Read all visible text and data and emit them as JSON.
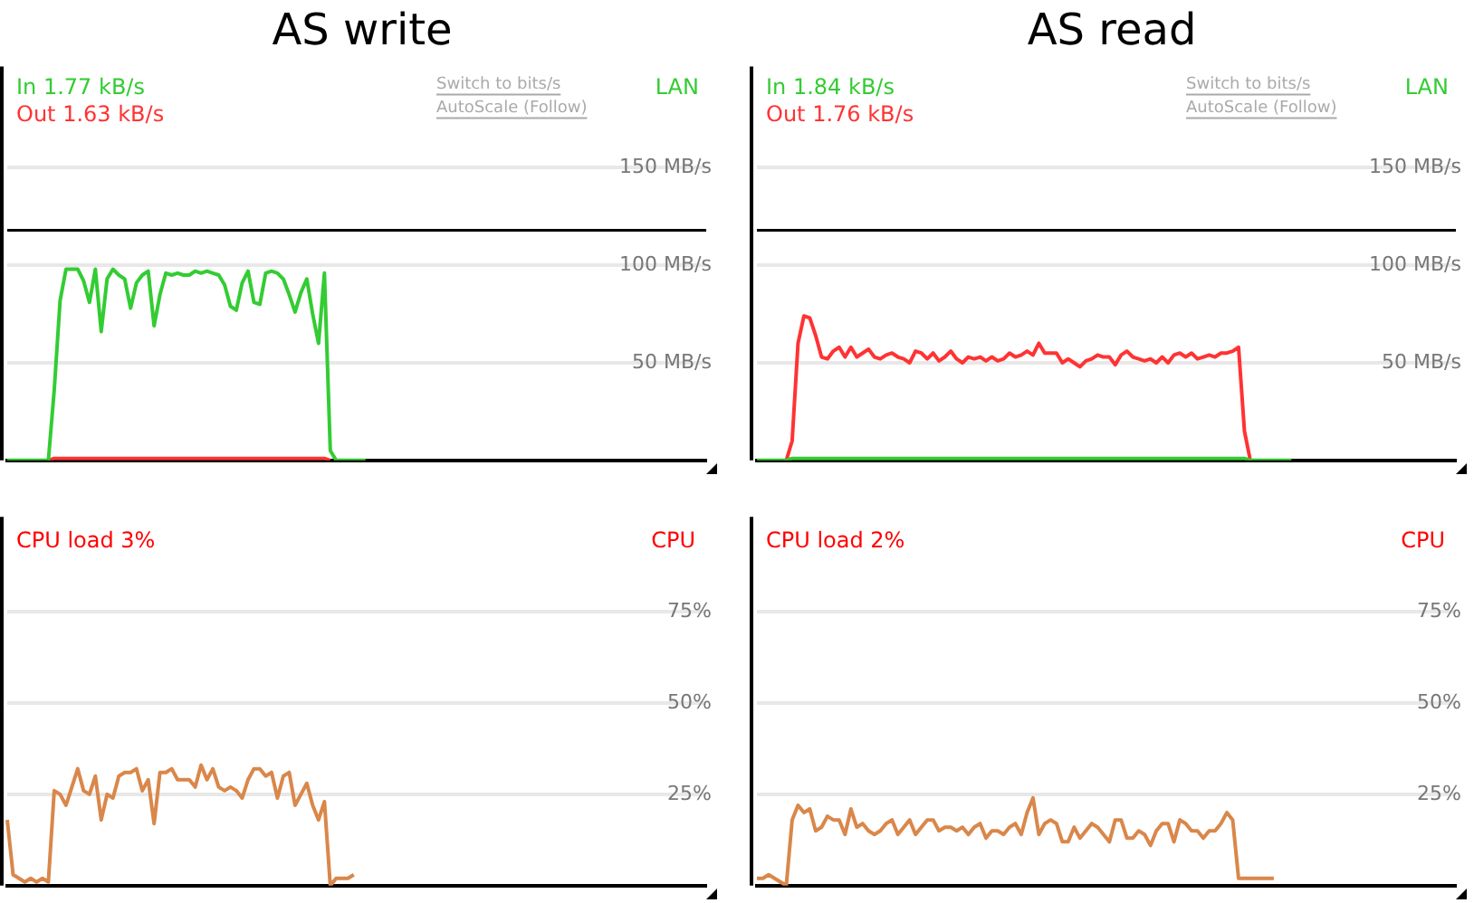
{
  "chart_data": [
    {
      "type": "line",
      "title": "AS write",
      "categories": [
        null,
        null,
        null,
        null,
        null,
        null,
        null,
        null,
        null,
        null,
        null,
        null,
        null,
        null,
        null,
        null,
        null,
        null,
        null,
        null,
        null,
        null,
        null,
        null,
        null,
        null,
        null,
        null,
        null,
        null,
        null,
        null,
        null,
        null,
        null,
        null,
        null,
        null,
        null,
        null,
        null,
        null,
        null,
        null,
        null,
        null,
        null,
        null,
        null,
        null,
        null,
        null,
        null,
        null,
        null,
        null,
        null,
        null,
        null,
        null,
        null,
        null,
        null,
        null,
        null,
        null,
        null,
        null,
        null,
        null,
        null,
        null,
        null,
        null,
        null,
        null,
        null,
        null,
        null,
        null,
        null,
        null,
        null,
        null,
        null,
        null,
        null,
        null,
        null,
        null,
        null,
        null,
        null,
        null,
        null,
        null,
        null,
        null,
        null,
        null,
        null,
        null,
        null,
        null,
        null,
        null,
        null,
        null,
        null,
        null,
        null,
        null,
        null,
        null,
        null,
        null,
        null,
        null,
        null,
        null
      ],
      "series": [
        {
          "color": "#33cc33",
          "values": [
            0,
            0,
            0,
            0,
            0,
            0,
            0,
            0,
            36,
            82,
            98,
            98,
            98,
            92,
            81,
            98,
            66,
            93,
            98,
            95,
            93,
            78,
            91,
            95,
            97,
            69,
            85,
            96,
            95,
            96,
            95,
            95,
            97,
            96,
            97,
            96,
            95,
            90,
            79,
            77,
            91,
            97,
            81,
            80,
            96,
            97,
            96,
            93,
            85,
            76,
            86,
            93,
            75,
            60,
            96,
            5,
            0,
            0,
            0,
            0,
            0,
            0,
            null,
            null,
            null,
            null,
            null,
            null,
            null,
            null,
            null,
            null,
            null,
            null,
            null,
            null,
            null,
            null,
            null,
            null,
            null,
            null,
            null,
            null,
            null,
            null,
            null,
            null,
            null,
            null,
            null,
            null,
            null,
            null,
            null,
            null,
            null,
            null,
            null,
            null,
            null,
            null,
            null,
            null,
            null,
            null,
            null,
            null,
            null,
            null,
            null,
            null,
            null,
            null,
            null,
            null,
            null,
            null,
            null,
            null
          ]
        },
        {
          "color": "#ff3333",
          "values": [
            null,
            null,
            null,
            null,
            null,
            null,
            null,
            0,
            1,
            1,
            1,
            1,
            1,
            1,
            1,
            1,
            1,
            1,
            1,
            1,
            1,
            1,
            1,
            1,
            1,
            1,
            1,
            1,
            1,
            1,
            1,
            1,
            1,
            1,
            1,
            1,
            1,
            1,
            1,
            1,
            1,
            1,
            1,
            1,
            1,
            1,
            1,
            1,
            1,
            1,
            1,
            1,
            1,
            1,
            1,
            0,
            null,
            null,
            null,
            null,
            null,
            null,
            null,
            null,
            null,
            null,
            null,
            null,
            null,
            null,
            null,
            null,
            null,
            null,
            null,
            null,
            null,
            null,
            null,
            null,
            null,
            null,
            null,
            null,
            null,
            null,
            null,
            null,
            null,
            null,
            null,
            null,
            null,
            null,
            null,
            null,
            null,
            null,
            null,
            null,
            null,
            null,
            null,
            null,
            null,
            null,
            null,
            null,
            null,
            null,
            null,
            null,
            null,
            null,
            null,
            null,
            null,
            null,
            null,
            null
          ]
        }
      ],
      "ylim": [
        0,
        200
      ],
      "yticks": [
        {
          "value": 50,
          "label": "50 MB/s"
        },
        {
          "value": 100,
          "label": "100 MB/s"
        },
        {
          "value": 150,
          "label": "150 MB/s"
        }
      ],
      "ref_lines": [
        {
          "axis": "y",
          "value": 118,
          "color": "#000000"
        }
      ],
      "annotations": [
        "In 1.77 kB/s",
        "Out 1.63 kB/s",
        "Switch to bits/s",
        "AutoScale (Follow)",
        "LAN"
      ],
      "grid": "y",
      "legend": false,
      "tick_labels": "y"
    },
    {
      "type": "line",
      "title": "AS read",
      "categories": [
        null,
        null,
        null,
        null,
        null,
        null,
        null,
        null,
        null,
        null,
        null,
        null,
        null,
        null,
        null,
        null,
        null,
        null,
        null,
        null,
        null,
        null,
        null,
        null,
        null,
        null,
        null,
        null,
        null,
        null,
        null,
        null,
        null,
        null,
        null,
        null,
        null,
        null,
        null,
        null,
        null,
        null,
        null,
        null,
        null,
        null,
        null,
        null,
        null,
        null,
        null,
        null,
        null,
        null,
        null,
        null,
        null,
        null,
        null,
        null,
        null,
        null,
        null,
        null,
        null,
        null,
        null,
        null,
        null,
        null,
        null,
        null,
        null,
        null,
        null,
        null,
        null,
        null,
        null,
        null,
        null,
        null,
        null,
        null,
        null,
        null,
        null,
        null,
        null,
        null,
        null,
        null,
        null,
        null,
        null,
        null,
        null,
        null,
        null,
        null,
        null,
        null,
        null,
        null,
        null,
        null,
        null,
        null,
        null,
        null,
        null,
        null,
        null,
        null,
        null,
        null,
        null,
        null,
        null,
        null
      ],
      "series": [
        {
          "color": "#33cc33",
          "values": [
            0,
            0,
            0,
            0,
            0,
            0,
            1,
            1,
            1,
            1,
            1,
            1,
            1,
            1,
            1,
            1,
            1,
            1,
            1,
            1,
            1,
            1,
            1,
            1,
            1,
            1,
            1,
            1,
            1,
            1,
            1,
            1,
            1,
            1,
            1,
            1,
            1,
            1,
            1,
            1,
            1,
            1,
            1,
            1,
            1,
            1,
            1,
            1,
            1,
            1,
            1,
            1,
            1,
            1,
            1,
            1,
            1,
            1,
            1,
            1,
            1,
            1,
            1,
            1,
            1,
            1,
            1,
            1,
            1,
            1,
            1,
            1,
            1,
            1,
            1,
            1,
            1,
            1,
            1,
            1,
            1,
            1,
            1,
            1,
            0,
            0,
            0,
            0,
            0,
            0,
            0,
            0,
            null,
            null,
            null,
            null,
            null,
            null,
            null,
            null,
            null,
            null,
            null,
            null,
            null,
            null,
            null,
            null,
            null,
            null,
            null,
            null,
            null,
            null,
            null,
            null,
            null,
            null,
            null,
            null
          ]
        },
        {
          "color": "#ff3333",
          "values": [
            null,
            null,
            null,
            null,
            null,
            0,
            10,
            60,
            74,
            73,
            64,
            53,
            52,
            56,
            58,
            53,
            58,
            53,
            55,
            57,
            53,
            52,
            54,
            55,
            53,
            52,
            50,
            56,
            55,
            52,
            55,
            51,
            53,
            56,
            52,
            50,
            53,
            52,
            53,
            51,
            53,
            51,
            52,
            55,
            53,
            54,
            56,
            54,
            60,
            55,
            55,
            55,
            50,
            52,
            50,
            48,
            51,
            52,
            54,
            53,
            53,
            49,
            54,
            56,
            53,
            52,
            51,
            52,
            50,
            53,
            50,
            54,
            55,
            53,
            55,
            52,
            53,
            54,
            53,
            55,
            55,
            56,
            58,
            15,
            0,
            null,
            null,
            null,
            null,
            null,
            null,
            null,
            null,
            null,
            null,
            null,
            null,
            null,
            null,
            null,
            null,
            null,
            null,
            null,
            null,
            null,
            null,
            null,
            null,
            null,
            null,
            null,
            null,
            null,
            null,
            null,
            null,
            null,
            null,
            null
          ]
        }
      ],
      "ylim": [
        0,
        200
      ],
      "yticks": [
        {
          "value": 50,
          "label": "50 MB/s"
        },
        {
          "value": 100,
          "label": "100 MB/s"
        },
        {
          "value": 150,
          "label": "150 MB/s"
        }
      ],
      "ref_lines": [
        {
          "axis": "y",
          "value": 118,
          "color": "#000000"
        }
      ],
      "annotations": [
        "In 1.84 kB/s",
        "Out 1.76 kB/s",
        "Switch to bits/s",
        "AutoScale (Follow)",
        "LAN"
      ],
      "grid": "y",
      "legend": false,
      "tick_labels": "y"
    },
    {
      "type": "line",
      "categories": [
        null,
        null,
        null,
        null,
        null,
        null,
        null,
        null,
        null,
        null,
        null,
        null,
        null,
        null,
        null,
        null,
        null,
        null,
        null,
        null,
        null,
        null,
        null,
        null,
        null,
        null,
        null,
        null,
        null,
        null,
        null,
        null,
        null,
        null,
        null,
        null,
        null,
        null,
        null,
        null,
        null,
        null,
        null,
        null,
        null,
        null,
        null,
        null,
        null,
        null,
        null,
        null,
        null,
        null,
        null,
        null,
        null,
        null,
        null,
        null,
        null,
        null,
        null,
        null,
        null,
        null,
        null,
        null,
        null,
        null,
        null,
        null,
        null,
        null,
        null,
        null,
        null,
        null,
        null,
        null,
        null,
        null,
        null,
        null,
        null,
        null,
        null,
        null,
        null,
        null,
        null,
        null,
        null,
        null,
        null,
        null,
        null,
        null,
        null,
        null,
        null,
        null,
        null,
        null,
        null,
        null,
        null,
        null,
        null,
        null,
        null,
        null,
        null,
        null,
        null,
        null,
        null,
        null,
        null,
        null
      ],
      "series": [
        {
          "color": "#d9874a",
          "values": [
            18,
            3,
            2,
            1,
            2,
            1,
            2,
            1,
            26,
            25,
            22,
            27,
            32,
            26,
            25,
            30,
            18,
            25,
            24,
            30,
            31,
            31,
            32,
            26,
            29,
            17,
            31,
            31,
            32,
            29,
            29,
            29,
            27,
            33,
            29,
            32,
            27,
            26,
            27,
            26,
            24,
            29,
            32,
            32,
            30,
            31,
            24,
            30,
            31,
            22,
            25,
            28,
            22,
            18,
            23,
            0,
            2,
            2,
            2,
            3,
            null,
            null,
            null,
            null,
            null,
            null,
            null,
            null,
            null,
            null,
            null,
            null,
            null,
            null,
            null,
            null,
            null,
            null,
            null,
            null,
            null,
            null,
            null,
            null,
            null,
            null,
            null,
            null,
            null,
            null,
            null,
            null,
            null,
            null,
            null,
            null,
            null,
            null,
            null,
            null,
            null,
            null,
            null,
            null,
            null,
            null,
            null,
            null,
            null,
            null,
            null,
            null,
            null,
            null,
            null,
            null,
            null,
            null,
            null,
            null
          ]
        }
      ],
      "ylim": [
        0,
        100
      ],
      "yticks": [
        {
          "value": 25,
          "label": "25%"
        },
        {
          "value": 50,
          "label": "50%"
        },
        {
          "value": 75,
          "label": "75%"
        }
      ],
      "annotations": [
        "CPU load 3%",
        "CPU"
      ],
      "grid": "y",
      "legend": false,
      "tick_labels": "y"
    },
    {
      "type": "line",
      "categories": [
        null,
        null,
        null,
        null,
        null,
        null,
        null,
        null,
        null,
        null,
        null,
        null,
        null,
        null,
        null,
        null,
        null,
        null,
        null,
        null,
        null,
        null,
        null,
        null,
        null,
        null,
        null,
        null,
        null,
        null,
        null,
        null,
        null,
        null,
        null,
        null,
        null,
        null,
        null,
        null,
        null,
        null,
        null,
        null,
        null,
        null,
        null,
        null,
        null,
        null,
        null,
        null,
        null,
        null,
        null,
        null,
        null,
        null,
        null,
        null,
        null,
        null,
        null,
        null,
        null,
        null,
        null,
        null,
        null,
        null,
        null,
        null,
        null,
        null,
        null,
        null,
        null,
        null,
        null,
        null,
        null,
        null,
        null,
        null,
        null,
        null,
        null,
        null,
        null,
        null,
        null,
        null,
        null,
        null,
        null,
        null,
        null,
        null,
        null,
        null,
        null,
        null,
        null,
        null,
        null,
        null,
        null,
        null,
        null,
        null,
        null,
        null,
        null,
        null,
        null,
        null,
        null,
        null,
        null,
        null
      ],
      "series": [
        {
          "color": "#d9874a",
          "values": [
            2,
            2,
            3,
            2,
            1,
            0,
            18,
            22,
            20,
            21,
            15,
            16,
            19,
            18,
            18,
            14,
            21,
            16,
            17,
            15,
            14,
            15,
            17,
            18,
            14,
            16,
            18,
            14,
            16,
            18,
            18,
            15,
            16,
            16,
            15,
            16,
            14,
            16,
            17,
            13,
            15,
            15,
            14,
            16,
            17,
            14,
            20,
            24,
            14,
            17,
            18,
            17,
            12,
            12,
            16,
            13,
            15,
            17,
            16,
            14,
            12,
            18,
            18,
            13,
            13,
            15,
            14,
            11,
            15,
            17,
            17,
            12,
            18,
            17,
            15,
            15,
            13,
            15,
            15,
            17,
            20,
            18,
            2,
            2,
            2,
            2,
            2,
            2,
            2,
            null,
            null,
            null,
            null,
            null,
            null,
            null,
            null,
            null,
            null,
            null,
            null,
            null,
            null,
            null,
            null,
            null,
            null,
            null,
            null,
            null,
            null,
            null,
            null,
            null,
            null,
            null,
            null,
            null,
            null,
            null
          ]
        }
      ],
      "ylim": [
        0,
        100
      ],
      "yticks": [
        {
          "value": 25,
          "label": "25%"
        },
        {
          "value": 50,
          "label": "50%"
        },
        {
          "value": 75,
          "label": "75%"
        }
      ],
      "annotations": [
        "CPU load 2%",
        "CPU"
      ],
      "grid": "y",
      "legend": false,
      "tick_labels": "y"
    }
  ]
}
